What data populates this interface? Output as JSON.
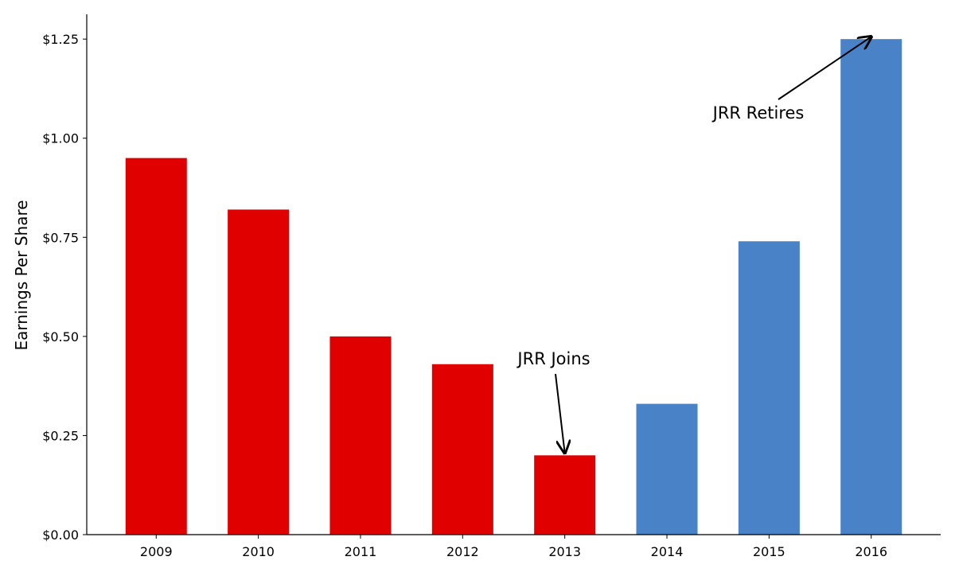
{
  "chart_data": {
    "type": "bar",
    "categories": [
      "2009",
      "2010",
      "2011",
      "2012",
      "2013",
      "2014",
      "2015",
      "2016"
    ],
    "values": [
      0.95,
      0.82,
      0.5,
      0.43,
      0.2,
      0.33,
      0.74,
      1.25
    ],
    "bar_colors": [
      "#e00000",
      "#e00000",
      "#e00000",
      "#e00000",
      "#e00000",
      "#4a82c8",
      "#4a82c8",
      "#4a82c8"
    ],
    "title": "",
    "xlabel": "",
    "ylabel": "Earnings Per Share",
    "ylim": [
      0,
      1.3125
    ],
    "yticks": [
      0,
      0.25,
      0.5,
      0.75,
      1.0,
      1.25
    ],
    "ytick_labels": [
      "$0.00",
      "$0.25",
      "$0.50",
      "$0.75",
      "$1.00",
      "$1.25"
    ],
    "grid": false,
    "legend": "none",
    "annotations": [
      {
        "text": "JRR Joins",
        "target_category": "2013",
        "target_value": 0.2
      },
      {
        "text": "JRR Retires",
        "target_category": "2016",
        "target_value": 1.25
      }
    ]
  }
}
